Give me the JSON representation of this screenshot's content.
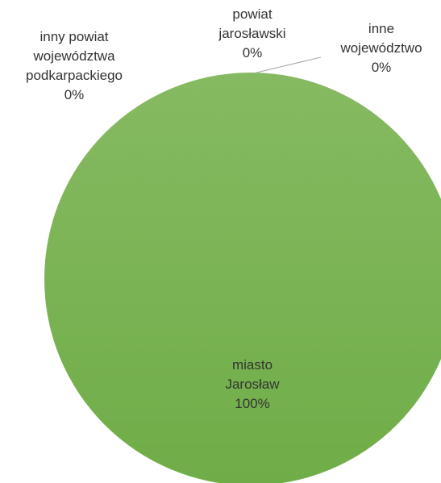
{
  "colors": {
    "main_slice": "#6fad47",
    "main_slice_light": "#86ba62",
    "leader_line": "#a6a6a6",
    "label_text": "#333333"
  },
  "chart_data": {
    "type": "pie",
    "slices": [
      {
        "name": "inny powiat województwa podkarpackiego",
        "value": 0,
        "label_lines": [
          "inny powiat",
          "województwa",
          "podkarpackiego"
        ],
        "pct": "0%"
      },
      {
        "name": "powiat jarosławski",
        "value": 0,
        "label_lines": [
          "powiat",
          "jarosławski"
        ],
        "pct": "0%"
      },
      {
        "name": "inne województwo",
        "value": 0,
        "label_lines": [
          "inne",
          "województwo"
        ],
        "pct": "0%"
      },
      {
        "name": "miasto Jarosław",
        "value": 100,
        "label_lines": [
          "miasto",
          "Jarosław"
        ],
        "pct": "100%"
      }
    ]
  }
}
